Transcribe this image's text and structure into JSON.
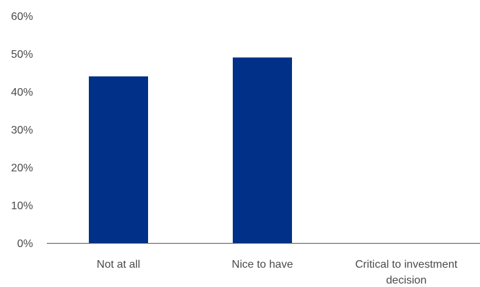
{
  "chart_data": {
    "type": "bar",
    "categories": [
      "Not at all",
      "Nice to have",
      "Critical to investment decision"
    ],
    "category_lines": [
      [
        "Not at all"
      ],
      [
        "Nice to have"
      ],
      [
        "Critical to investment",
        "decision"
      ]
    ],
    "values": [
      44,
      49,
      0
    ],
    "unit": "%",
    "ylim": [
      0,
      60
    ],
    "yticks": [
      0,
      10,
      20,
      30,
      40,
      50,
      60
    ],
    "ytick_labels": [
      "0%",
      "10%",
      "20%",
      "30%",
      "40%",
      "50%",
      "60%"
    ],
    "grid": false,
    "title": "",
    "xlabel": "",
    "ylabel": "",
    "bar_color": "#003087",
    "axis_color": "#555555"
  }
}
